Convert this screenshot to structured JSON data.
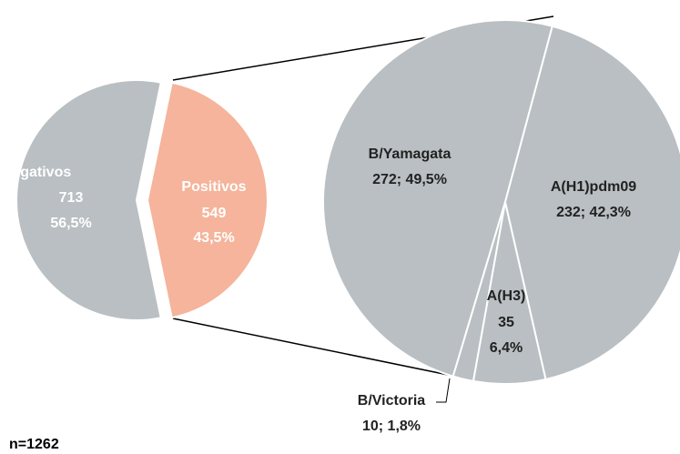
{
  "chart_data": [
    {
      "type": "pie",
      "categories": [
        "Negativos",
        "Positivos"
      ],
      "values": [
        713,
        549
      ],
      "value_labels": [
        [
          "713",
          "56,5%"
        ],
        [
          "549",
          "43,5%"
        ]
      ],
      "colors": [
        "#b9bfc2",
        "#f5b49b"
      ],
      "note": "n=1262"
    },
    {
      "type": "pie",
      "categories": [
        "B/Yamagata",
        "B/Victoria",
        "A(H3)",
        "A(H1)pdm09"
      ],
      "values": [
        272,
        10,
        35,
        232
      ],
      "value_labels": [
        [
          "272; 49,5%"
        ],
        [
          "10; 1,8%"
        ],
        [
          "35",
          "6,4%"
        ],
        [
          "232; 42,3%"
        ]
      ],
      "colors": [
        "#b9bfc2",
        "#b9bfc2",
        "#b9bfc2",
        "#b9bfc2"
      ]
    }
  ]
}
